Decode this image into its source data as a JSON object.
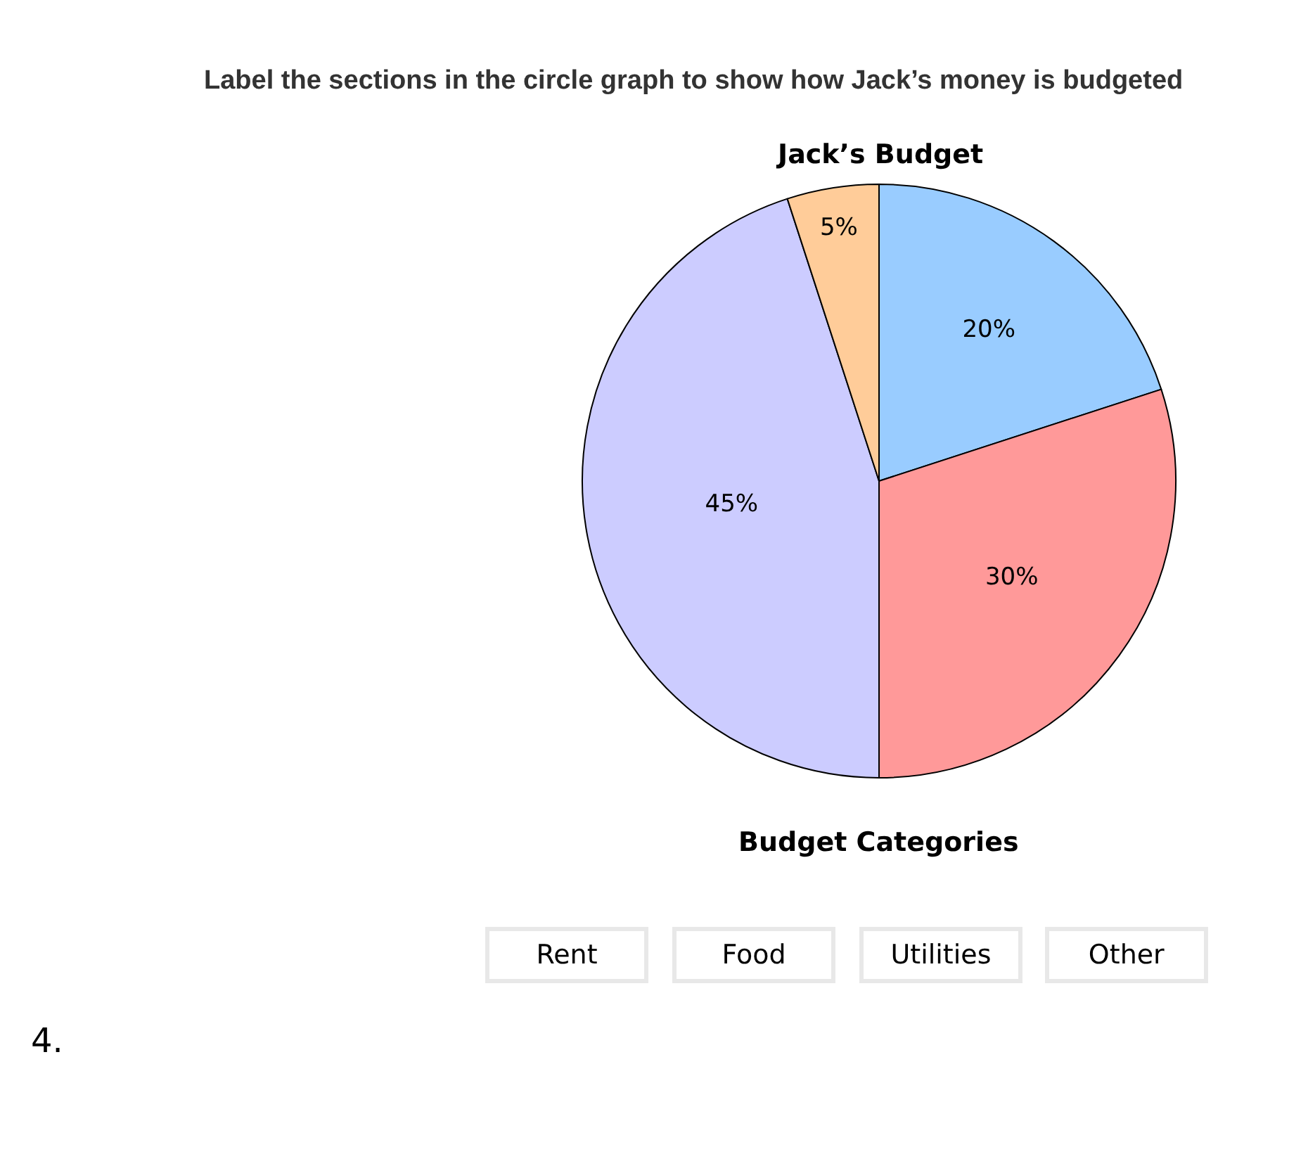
{
  "chart_data": {
    "type": "pie",
    "title": "Label the sections in the circle graph to show how Jack’s money is budgeted",
    "subtitle": "Jack’s Budget",
    "categories": [
      null,
      null,
      null,
      null
    ],
    "values": [
      20,
      30,
      45,
      5
    ],
    "colors": [
      "#99ccff",
      "#ff9999",
      "#ccccff",
      "#ffcc99"
    ],
    "value_labels": [
      "20%",
      "30%",
      "45%",
      "5%"
    ],
    "legend": false,
    "annotations": [
      "Budget Categories",
      "Rent",
      "Food",
      "Utilities",
      "Other",
      "4."
    ]
  }
}
